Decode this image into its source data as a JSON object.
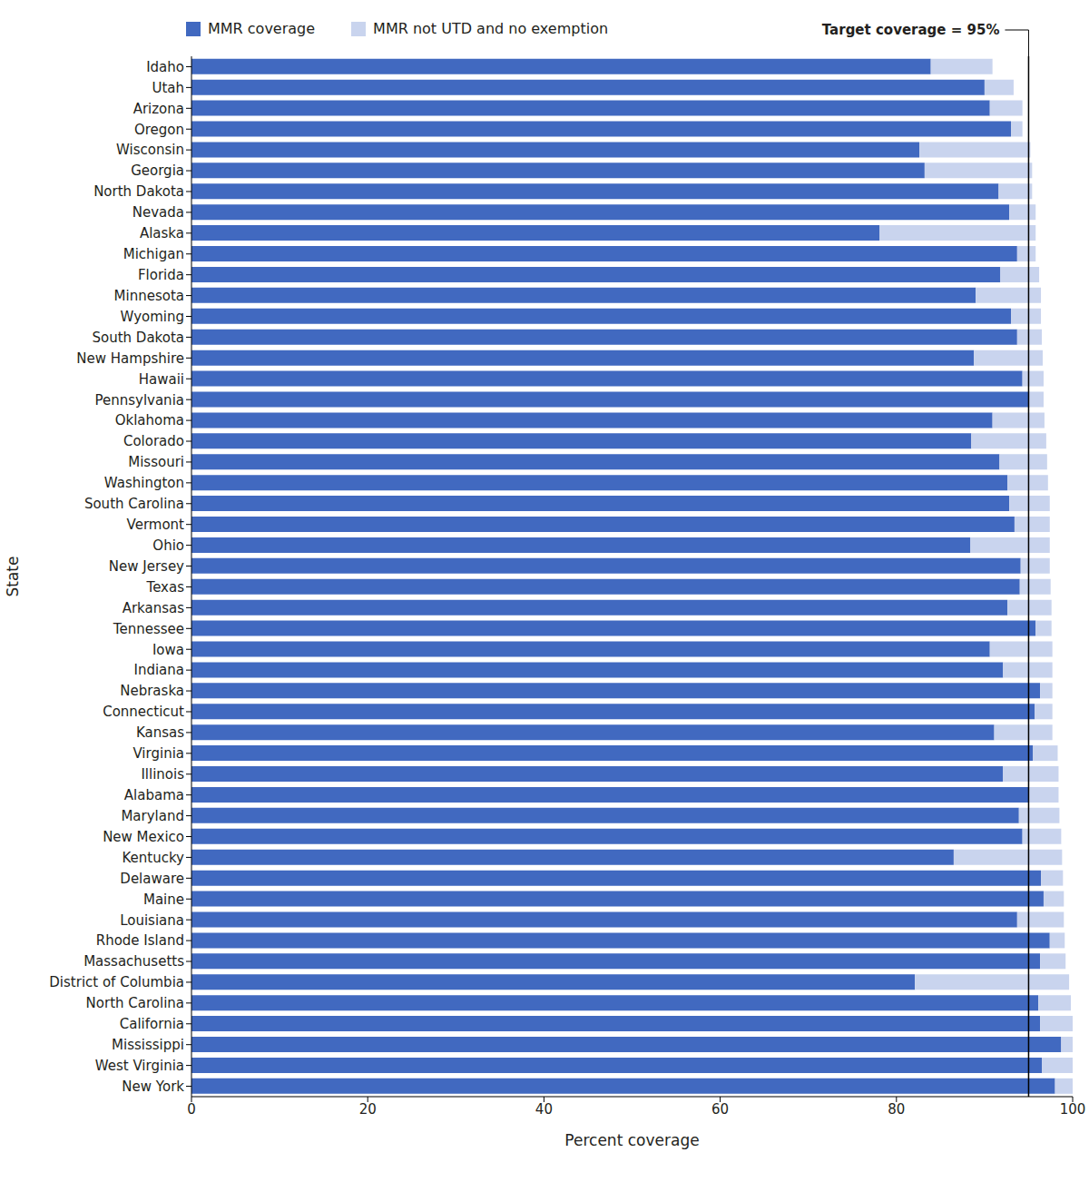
{
  "chart_data": {
    "type": "bar",
    "orientation": "horizontal",
    "stacked": true,
    "x_label": "Percent coverage",
    "y_label": "State",
    "legend": "top",
    "categories": [
      "Idaho",
      "Utah",
      "Arizona",
      "Oregon",
      "Wisconsin",
      "Georgia",
      "North Dakota",
      "Nevada",
      "Alaska",
      "Michigan",
      "Florida",
      "Minnesota",
      "Wyoming",
      "South Dakota",
      "New Hampshire",
      "Hawaii",
      "Pennsylvania",
      "Oklahoma",
      "Colorado",
      "Missouri",
      "Washington",
      "South Carolina",
      "Vermont",
      "Ohio",
      "New Jersey",
      "Texas",
      "Arkansas",
      "Tennessee",
      "Iowa",
      "Indiana",
      "Nebraska",
      "Connecticut",
      "Kansas",
      "Virginia",
      "Illinois",
      "Alabama",
      "Maryland",
      "New Mexico",
      "Kentucky",
      "Delaware",
      "Maine",
      "Louisiana",
      "Rhode Island",
      "Massachusetts",
      "District of Columbia",
      "North Carolina",
      "California",
      "Mississippi",
      "West Virginia",
      "New York"
    ],
    "series": [
      {
        "name": "MMR coverage",
        "color": "#4169c0",
        "values": [
          83.9,
          90.0,
          90.6,
          93.0,
          82.6,
          83.2,
          91.6,
          92.8,
          78.1,
          93.7,
          91.8,
          89.0,
          93.0,
          93.7,
          88.8,
          94.3,
          95.1,
          90.9,
          88.5,
          91.7,
          92.6,
          92.8,
          93.4,
          88.4,
          94.1,
          94.0,
          92.6,
          95.8,
          90.6,
          92.1,
          96.3,
          95.7,
          91.1,
          95.5,
          92.1,
          95.0,
          93.9,
          94.3,
          86.5,
          96.4,
          96.7,
          93.7,
          97.4,
          96.3,
          82.1,
          96.1,
          96.3,
          98.7,
          96.5,
          98.0
        ]
      },
      {
        "name": "MMR not UTD and no exemption",
        "color": "#c9d4ee",
        "values": [
          7.0,
          3.3,
          3.7,
          1.3,
          12.6,
          12.2,
          3.8,
          3.0,
          17.7,
          2.1,
          4.4,
          7.4,
          3.4,
          2.8,
          7.8,
          2.4,
          1.6,
          5.9,
          8.5,
          5.4,
          4.6,
          4.6,
          4.0,
          9.0,
          3.3,
          3.5,
          5.0,
          1.8,
          7.1,
          5.6,
          1.4,
          2.0,
          6.6,
          2.8,
          6.3,
          3.4,
          4.6,
          4.4,
          12.3,
          2.5,
          2.3,
          5.3,
          1.7,
          2.9,
          17.5,
          3.7,
          3.7,
          1.3,
          3.5,
          2.0
        ]
      }
    ],
    "xlim": [
      0,
      100
    ],
    "xticks": [
      0,
      20,
      40,
      60,
      80,
      100
    ],
    "target_line": {
      "value": 95,
      "label": "Target coverage = 95%"
    }
  }
}
